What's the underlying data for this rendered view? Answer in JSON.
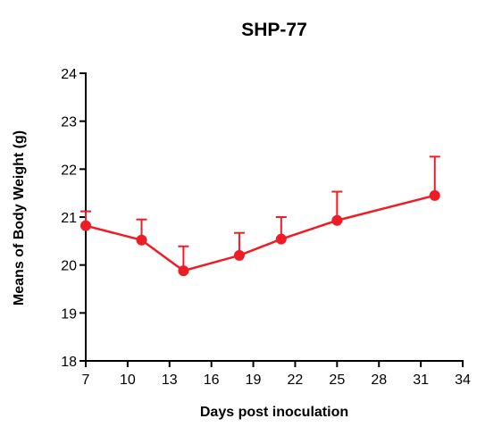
{
  "chart_data": {
    "type": "line",
    "title": "SHP-77",
    "xlabel": "Days post inoculation",
    "ylabel": "Means of Body Weight (g)",
    "xlim": [
      7,
      34
    ],
    "ylim": [
      18,
      24
    ],
    "xticks": [
      7,
      10,
      13,
      16,
      19,
      22,
      25,
      28,
      31,
      34
    ],
    "yticks": [
      18,
      19,
      20,
      21,
      22,
      23,
      24
    ],
    "series": [
      {
        "color": "#ee1c24",
        "x": [
          7,
          11,
          14,
          18,
          21,
          25,
          32
        ],
        "y": [
          20.82,
          20.52,
          19.88,
          20.2,
          20.54,
          20.93,
          21.45
        ],
        "error_upper": [
          0.3,
          0.43,
          0.51,
          0.47,
          0.46,
          0.6,
          0.81
        ]
      }
    ],
    "grid": false,
    "legend": "none"
  }
}
